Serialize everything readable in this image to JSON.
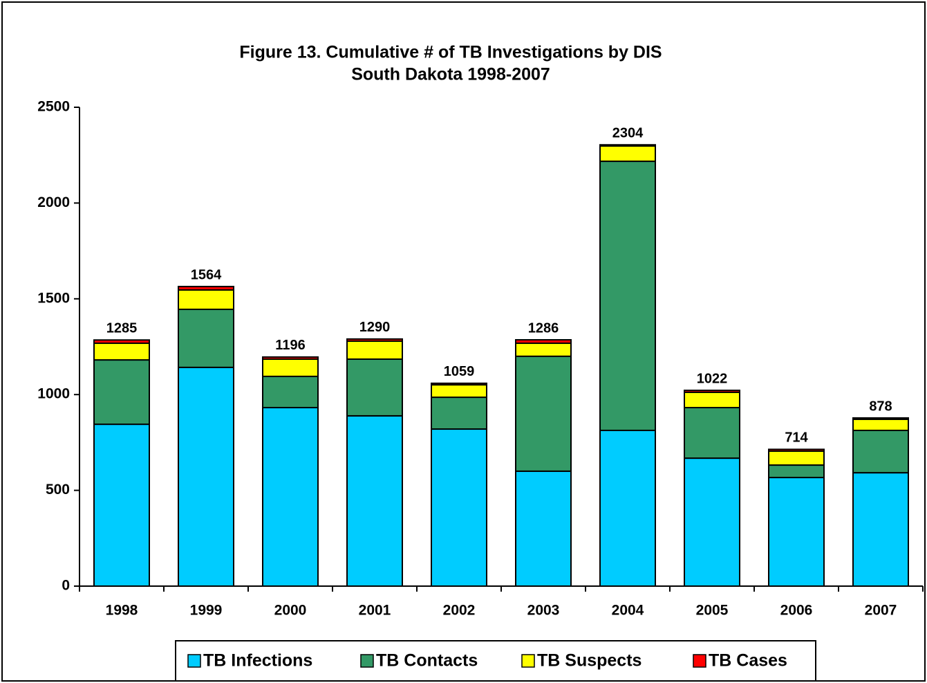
{
  "chart_data": {
    "type": "stacked_bar",
    "title": "Figure 13.  Cumulative # of TB Investigations by DIS",
    "subtitle": "South Dakota 1998-2007",
    "categories": [
      "1998",
      "1999",
      "2000",
      "2001",
      "2002",
      "2003",
      "2004",
      "2005",
      "2006",
      "2007"
    ],
    "series": [
      {
        "name": "TB Infections",
        "color": "#00ccff",
        "values": [
          845,
          1142,
          932,
          889,
          820,
          600,
          813,
          668,
          567,
          592
        ]
      },
      {
        "name": "TB Contacts",
        "color": "#339966",
        "values": [
          336,
          303,
          163,
          296,
          166,
          600,
          1405,
          264,
          65,
          221
        ]
      },
      {
        "name": "TB Suspects",
        "color": "#ffff00",
        "values": [
          87,
          101,
          90,
          94,
          65,
          68,
          80,
          80,
          73,
          58
        ]
      },
      {
        "name": "TB Cases",
        "color": "#ff0000",
        "values": [
          17,
          18,
          11,
          11,
          8,
          18,
          6,
          10,
          9,
          7
        ]
      }
    ],
    "totals": [
      1285,
      1564,
      1196,
      1290,
      1059,
      1286,
      2304,
      1022,
      714,
      878
    ],
    "ylim": [
      0,
      2500
    ],
    "yticks": [
      0,
      500,
      1000,
      1500,
      2000,
      2500
    ],
    "grid": false,
    "legend": "bottom"
  }
}
